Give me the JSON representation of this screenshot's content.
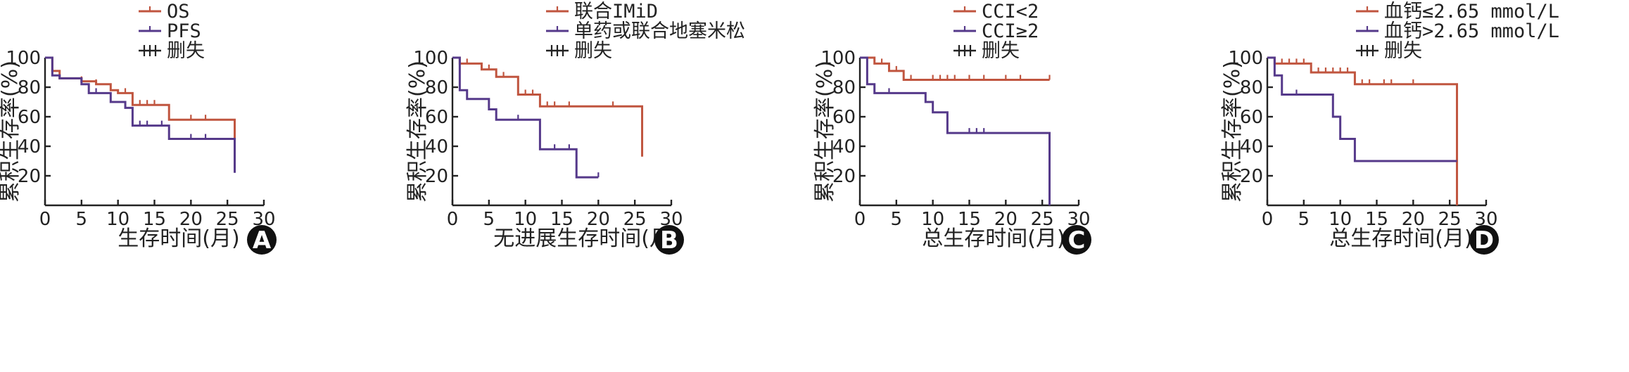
{
  "colors": {
    "red": "#c0553f",
    "purple": "#55398a",
    "black": "#222222"
  },
  "chart_data": [
    {
      "type": "line",
      "subtype": "kaplan-meier",
      "panel_label": "A",
      "xlabel": "生存时间(月)",
      "ylabel": "累积生存率(%)",
      "xlim": [
        0,
        30
      ],
      "ylim": [
        0,
        100
      ],
      "xticks": [
        "0",
        "5",
        "10",
        "15",
        "20",
        "25",
        "30"
      ],
      "yticks": [
        "20",
        "40",
        "60",
        "80",
        "100"
      ],
      "legend": {
        "placement": "top-center",
        "entries": [
          "OS",
          "PFS"
        ],
        "censor_label": "删失"
      },
      "series": [
        {
          "name": "OS",
          "color": "red",
          "steps": [
            [
              0,
              100
            ],
            [
              1,
              91
            ],
            [
              2,
              86
            ],
            [
              4,
              86
            ],
            [
              5,
              84
            ],
            [
              7,
              82
            ],
            [
              9,
              78
            ],
            [
              10,
              76
            ],
            [
              12,
              68
            ],
            [
              17,
              58
            ],
            [
              26,
              58
            ],
            [
              26,
              25
            ]
          ],
          "censored": [
            [
              5,
              84
            ],
            [
              7,
              82
            ],
            [
              11,
              76
            ],
            [
              13,
              68
            ],
            [
              14,
              68
            ],
            [
              15,
              68
            ],
            [
              20,
              58
            ],
            [
              22,
              58
            ]
          ]
        },
        {
          "name": "PFS",
          "color": "purple",
          "steps": [
            [
              0,
              100
            ],
            [
              1,
              88
            ],
            [
              2,
              86
            ],
            [
              4,
              86
            ],
            [
              5,
              82
            ],
            [
              6,
              76
            ],
            [
              9,
              70
            ],
            [
              11,
              66
            ],
            [
              12,
              54
            ],
            [
              17,
              45
            ],
            [
              26,
              45
            ],
            [
              26,
              22
            ]
          ],
          "censored": [
            [
              7,
              76
            ],
            [
              13,
              54
            ],
            [
              14,
              54
            ],
            [
              16,
              54
            ],
            [
              20,
              45
            ],
            [
              22,
              45
            ]
          ]
        }
      ]
    },
    {
      "type": "line",
      "subtype": "kaplan-meier",
      "panel_label": "B",
      "xlabel": "无进展生存时间(月)",
      "ylabel": "累积生存率(%)",
      "xlim": [
        0,
        30
      ],
      "ylim": [
        0,
        100
      ],
      "xticks": [
        "0",
        "5",
        "10",
        "15",
        "20",
        "25",
        "30"
      ],
      "yticks": [
        "20",
        "40",
        "60",
        "80",
        "100"
      ],
      "legend": {
        "placement": "top-center",
        "entries": [
          "联合IMiD",
          "单药或联合地塞米松"
        ],
        "censor_label": "删失"
      },
      "series": [
        {
          "name": "联合IMiD",
          "color": "red",
          "steps": [
            [
              0,
              100
            ],
            [
              1,
              96
            ],
            [
              4,
              92
            ],
            [
              6,
              87
            ],
            [
              9,
              75
            ],
            [
              12,
              67
            ],
            [
              26,
              67
            ],
            [
              26,
              33
            ]
          ],
          "censored": [
            [
              2,
              96
            ],
            [
              5,
              92
            ],
            [
              7,
              87
            ],
            [
              10,
              75
            ],
            [
              11,
              75
            ],
            [
              13,
              67
            ],
            [
              14,
              67
            ],
            [
              16,
              67
            ],
            [
              22,
              67
            ]
          ]
        },
        {
          "name": "单药或联合地塞米松",
          "color": "purple",
          "steps": [
            [
              0,
              100
            ],
            [
              1,
              78
            ],
            [
              2,
              72
            ],
            [
              5,
              65
            ],
            [
              6,
              58
            ],
            [
              12,
              38
            ],
            [
              17,
              19
            ],
            [
              20,
              19
            ]
          ],
          "censored": [
            [
              9,
              58
            ],
            [
              14,
              38
            ],
            [
              16,
              38
            ],
            [
              20,
              19
            ]
          ]
        }
      ]
    },
    {
      "type": "line",
      "subtype": "kaplan-meier",
      "panel_label": "C",
      "xlabel": "总生存时间(月)",
      "ylabel": "累积生存率(%)",
      "xlim": [
        0,
        30
      ],
      "ylim": [
        0,
        100
      ],
      "xticks": [
        "0",
        "5",
        "10",
        "15",
        "20",
        "25",
        "30"
      ],
      "yticks": [
        "20",
        "40",
        "60",
        "80",
        "100"
      ],
      "legend": {
        "placement": "top-center",
        "entries": [
          "CCI<2",
          "CCI≥2"
        ],
        "censor_label": "删失"
      },
      "series": [
        {
          "name": "CCI<2",
          "color": "red",
          "steps": [
            [
              0,
              100
            ],
            [
              2,
              96
            ],
            [
              4,
              91
            ],
            [
              6,
              85
            ],
            [
              26,
              85
            ]
          ],
          "censored": [
            [
              3,
              96
            ],
            [
              5,
              91
            ],
            [
              7,
              85
            ],
            [
              10,
              85
            ],
            [
              11,
              85
            ],
            [
              12,
              85
            ],
            [
              13,
              85
            ],
            [
              15,
              85
            ],
            [
              17,
              85
            ],
            [
              20,
              85
            ],
            [
              22,
              85
            ],
            [
              26,
              85
            ]
          ]
        },
        {
          "name": "CCI≥2",
          "color": "purple",
          "steps": [
            [
              0,
              100
            ],
            [
              1,
              82
            ],
            [
              2,
              76
            ],
            [
              9,
              70
            ],
            [
              10,
              63
            ],
            [
              12,
              49
            ],
            [
              26,
              49
            ],
            [
              26,
              0
            ]
          ],
          "censored": [
            [
              4,
              76
            ],
            [
              15,
              49
            ],
            [
              16,
              49
            ],
            [
              17,
              49
            ]
          ]
        }
      ]
    },
    {
      "type": "line",
      "subtype": "kaplan-meier",
      "panel_label": "D",
      "xlabel": "总生存时间(月)",
      "ylabel": "累积生存率(%)",
      "xlim": [
        0,
        30
      ],
      "ylim": [
        0,
        100
      ],
      "xticks": [
        "0",
        "5",
        "10",
        "15",
        "20",
        "25",
        "30"
      ],
      "yticks": [
        "20",
        "40",
        "60",
        "80",
        "100"
      ],
      "legend": {
        "placement": "top-center",
        "entries": [
          "血钙≤2.65 mmol/L",
          "血钙>2.65 mmol/L"
        ],
        "censor_label": "删失"
      },
      "series": [
        {
          "name": "血钙≤2.65 mmol/L",
          "color": "red",
          "steps": [
            [
              0,
              100
            ],
            [
              1,
              96
            ],
            [
              6,
              90
            ],
            [
              12,
              82
            ],
            [
              26,
              82
            ],
            [
              26,
              0
            ]
          ],
          "censored": [
            [
              2,
              96
            ],
            [
              3,
              96
            ],
            [
              4,
              96
            ],
            [
              5,
              96
            ],
            [
              7,
              90
            ],
            [
              8,
              90
            ],
            [
              9,
              90
            ],
            [
              10,
              90
            ],
            [
              11,
              90
            ],
            [
              13,
              82
            ],
            [
              14,
              82
            ],
            [
              16,
              82
            ],
            [
              17,
              82
            ],
            [
              20,
              82
            ]
          ]
        },
        {
          "name": "血钙>2.65 mmol/L",
          "color": "purple",
          "steps": [
            [
              0,
              100
            ],
            [
              1,
              88
            ],
            [
              2,
              75
            ],
            [
              9,
              60
            ],
            [
              10,
              45
            ],
            [
              12,
              30
            ],
            [
              26,
              30
            ]
          ],
          "censored": [
            [
              4,
              75
            ]
          ]
        }
      ]
    }
  ]
}
